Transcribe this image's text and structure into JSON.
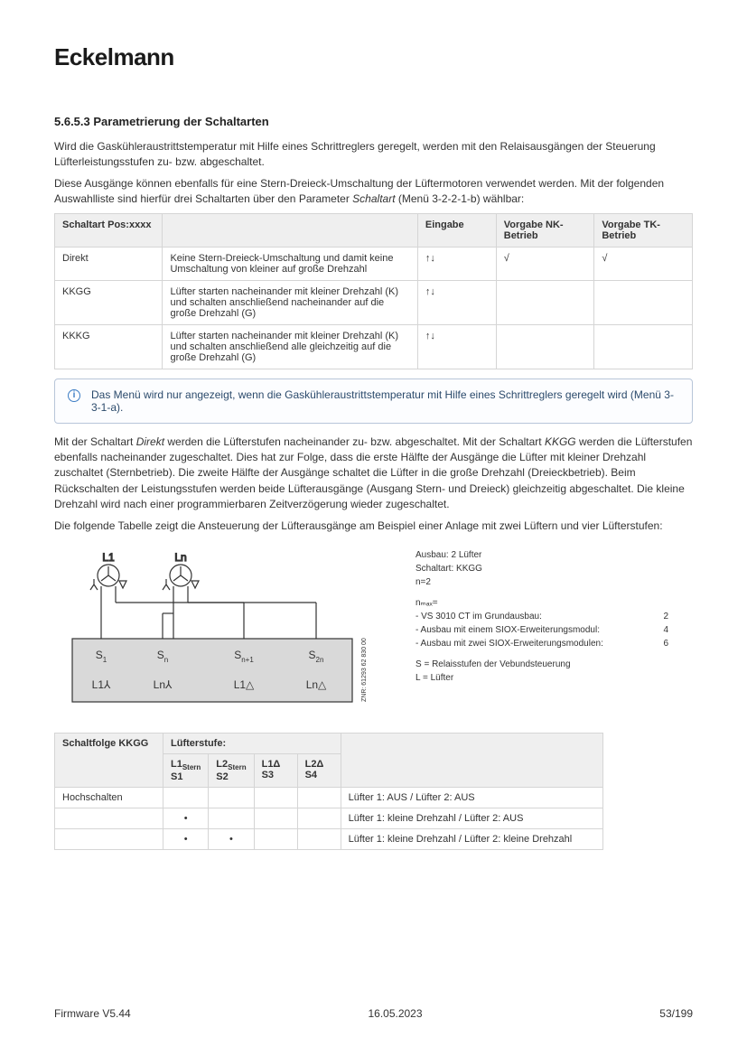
{
  "logo": "Eckelmann",
  "heading": "5.6.5.3  Parametrierung der Schaltarten",
  "para1": "Wird die Gaskühleraustrittstemperatur mit Hilfe eines Schrittreglers geregelt, werden mit den Relaisausgängen der Steuerung Lüfterleistungsstufen zu- bzw. abgeschaltet.",
  "para2a": "Diese Ausgänge können ebenfalls für eine Stern-Dreieck-Umschaltung der Lüftermotoren verwendet werden. Mit der folgenden Auswahlliste sind hierfür drei Schaltarten über den Parameter ",
  "para2_italic": "Schaltart",
  "para2b": " (Menü 3-2-2-1-b) wählbar:",
  "table1": {
    "headers": [
      "Schaltart Pos:xxxx",
      "",
      "Eingabe",
      "Vorgabe NK-Betrieb",
      "Vorgabe TK-Betrieb"
    ],
    "rows": [
      {
        "pos": "Direkt",
        "desc": "Keine Stern-Dreieck-Umschaltung und damit keine Umschaltung von kleiner auf große Drehzahl",
        "ein": "↑↓",
        "nk": "√",
        "tk": "√"
      },
      {
        "pos": "KKGG",
        "desc": "Lüfter starten nacheinander mit kleiner Drehzahl (K) und schalten anschließend nacheinander auf die große Drehzahl (G)",
        "ein": "↑↓",
        "nk": "",
        "tk": ""
      },
      {
        "pos": "KKKG",
        "desc": "Lüfter starten nacheinander mit kleiner Drehzahl (K) und schalten anschließend alle gleichzeitig auf die große Drehzahl (G)",
        "ein": "↑↓",
        "nk": "",
        "tk": ""
      }
    ]
  },
  "info": "Das Menü wird nur angezeigt, wenn die Gaskühleraustrittstemperatur mit Hilfe eines Schrittreglers geregelt wird (Menü 3-3-1-a).",
  "para3a": "Mit der Schaltart ",
  "para3_it1": "Direkt",
  "para3b": " werden die Lüfterstufen nacheinander zu- bzw. abgeschaltet. Mit der Schaltart ",
  "para3_it2": "KKGG",
  "para3c": " werden die Lüfterstufen ebenfalls nacheinander zugeschaltet. Dies hat zur Folge, dass die erste Hälfte der Ausgänge die Lüfter mit kleiner Drehzahl zuschaltet (Sternbetrieb). Die zweite Hälfte der Ausgänge schaltet die Lüfter in die große Drehzahl (Dreieckbetrieb). Beim Rückschalten der Leistungsstufen werden beide Lüfterausgänge (Ausgang Stern- und Dreieck) gleichzeitig abgeschaltet. Die kleine Drehzahl wird nach einer programmierbaren Zeitverzögerung wieder zugeschaltet.",
  "para4": "Die folgende Tabelle zeigt die Ansteuerung der Lüfterausgänge am Beispiel einer Anlage mit zwei Lüftern und vier Lüfterstufen:",
  "diagram": {
    "top_labels": [
      "L1",
      "Ln"
    ],
    "s_labels": [
      "S₁",
      "Sₙ",
      "Sₙ₊₁",
      "S₂ₙ"
    ],
    "bottom_labels": [
      "L1⅄",
      "Ln⅄",
      "L1△",
      "Ln△"
    ],
    "znr": "ZNR: 61293 62 830 00",
    "box_fill": "#d9d9d9",
    "stroke": "#333333"
  },
  "legend": {
    "l1": "Ausbau: 2 Lüfter",
    "l2": "Schaltart: KKGG",
    "l3": "n=2",
    "nmax": "nₘₐₓ=",
    "rows": [
      {
        "t": "- VS 3010 CT im Grundausbau:",
        "v": "2"
      },
      {
        "t": "- Ausbau mit einem SIOX-Erweiterungsmodul:",
        "v": "4"
      },
      {
        "t": "- Ausbau mit zwei SIOX-Erweiterungsmodulen:",
        "v": "6"
      }
    ],
    "s_def": "S = Relaisstufen der Vebundsteuerung",
    "l_def": "L = Lüfter"
  },
  "table2": {
    "h1": "Schaltfolge KKGG",
    "h2": "Lüfterstufe:",
    "sub": [
      "L1Stern S1",
      "L2Stern S2",
      "L1Δ S3",
      "L2Δ S4"
    ],
    "rows": [
      {
        "label": "Hochschalten",
        "s": [
          "",
          "",
          "",
          ""
        ],
        "text": "Lüfter 1: AUS / Lüfter 2: AUS"
      },
      {
        "label": "",
        "s": [
          "•",
          "",
          "",
          ""
        ],
        "text": "Lüfter 1: kleine Drehzahl / Lüfter 2: AUS"
      },
      {
        "label": "",
        "s": [
          "•",
          "•",
          "",
          ""
        ],
        "text": "Lüfter 1: kleine Drehzahl / Lüfter 2: kleine Drehzahl"
      }
    ]
  },
  "footer": {
    "left": "Firmware V5.44",
    "center": "16.05.2023",
    "right": "53/199"
  }
}
